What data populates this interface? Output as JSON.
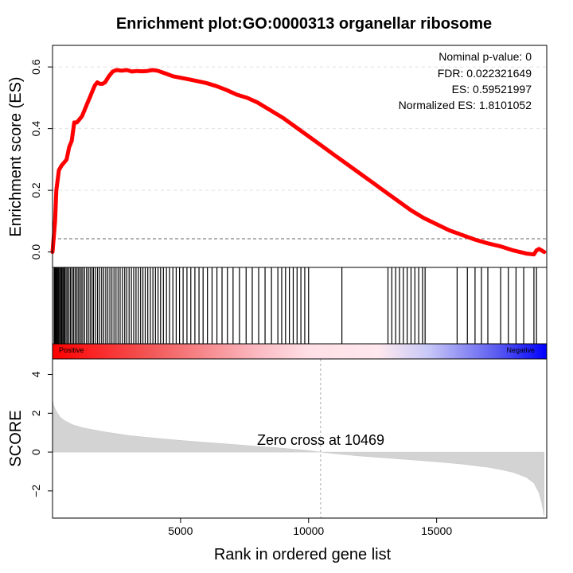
{
  "chart_data": [
    {
      "type": "line",
      "panel": "enrichment-score",
      "title": "Enrichment plot:GO:0000313 organellar ribosome",
      "ylabel": "Enrichment score (ES)",
      "xlim": [
        0,
        19300
      ],
      "ylim": [
        -0.05,
        0.67
      ],
      "yticks": [
        0.0,
        0.2,
        0.4,
        0.6
      ],
      "grid": "dashed horizontal",
      "zero_line": "dashed",
      "line_color": "#ff0000",
      "x": [
        0,
        100,
        150,
        250,
        350,
        450,
        550,
        650,
        750,
        850,
        950,
        1050,
        1150,
        1250,
        1350,
        1450,
        1550,
        1650,
        1750,
        1850,
        1950,
        2050,
        2200,
        2350,
        2500,
        2700,
        2900,
        3100,
        3300,
        3500,
        3700,
        3900,
        4100,
        4300,
        4500,
        4700,
        5000,
        5300,
        5600,
        6000,
        6400,
        6800,
        7200,
        7600,
        8000,
        8500,
        9000,
        9500,
        10000,
        10500,
        11000,
        11500,
        12000,
        12500,
        13000,
        13500,
        14000,
        14500,
        15000,
        15500,
        16000,
        16500,
        17000,
        17500,
        18000,
        18500,
        18800,
        18900,
        19000,
        19100,
        19200
      ],
      "y": [
        0.0,
        0.1,
        0.2,
        0.265,
        0.28,
        0.29,
        0.3,
        0.34,
        0.36,
        0.42,
        0.42,
        0.43,
        0.44,
        0.46,
        0.48,
        0.5,
        0.52,
        0.54,
        0.55,
        0.545,
        0.545,
        0.55,
        0.57,
        0.585,
        0.59,
        0.588,
        0.59,
        0.585,
        0.587,
        0.586,
        0.587,
        0.59,
        0.588,
        0.582,
        0.576,
        0.57,
        0.565,
        0.56,
        0.555,
        0.548,
        0.538,
        0.525,
        0.51,
        0.5,
        0.485,
        0.46,
        0.435,
        0.405,
        0.375,
        0.345,
        0.315,
        0.285,
        0.255,
        0.225,
        0.195,
        0.165,
        0.135,
        0.11,
        0.09,
        0.07,
        0.055,
        0.04,
        0.028,
        0.018,
        0.005,
        -0.005,
        -0.008,
        0.005,
        0.01,
        0.005,
        0.0
      ],
      "annotations": [
        "Nominal p-value: 0",
        "FDR: 0.022321649",
        "ES: 0.59521997",
        "Normalized ES: 1.8101052"
      ]
    },
    {
      "type": "barcode",
      "panel": "gene-hits",
      "labels": [
        "Positive",
        "Negative"
      ],
      "hit_ranks": [
        60,
        90,
        120,
        150,
        180,
        210,
        240,
        280,
        320,
        360,
        400,
        440,
        480,
        530,
        580,
        640,
        700,
        760,
        820,
        880,
        940,
        1000,
        1060,
        1120,
        1180,
        1250,
        1330,
        1400,
        1470,
        1540,
        1600,
        1680,
        1760,
        1840,
        1920,
        2000,
        2080,
        2160,
        2240,
        2320,
        2400,
        2480,
        2560,
        2640,
        2730,
        2820,
        2900,
        2990,
        3080,
        3170,
        3260,
        3350,
        3440,
        3530,
        3620,
        3720,
        3820,
        3920,
        4020,
        4120,
        4220,
        4330,
        4450,
        4570,
        4700,
        4830,
        4960,
        5100,
        5250,
        5400,
        5560,
        5720,
        5880,
        6050,
        6230,
        6420,
        6620,
        6830,
        7050,
        7300,
        7560,
        7800,
        8050,
        8300,
        8550,
        8800,
        8950,
        9100,
        9250,
        9400,
        9550,
        9700,
        9850,
        10000,
        11300,
        13100,
        13250,
        13400,
        13550,
        13700,
        13850,
        14000,
        14150,
        14300,
        14450,
        14550,
        15800,
        16200,
        16500,
        16750,
        17000,
        17500,
        17800,
        18100,
        18400,
        18800,
        18900
      ],
      "color_gradient": [
        "#ff0000",
        "#ffe0e6",
        "#0000ff"
      ]
    },
    {
      "type": "area",
      "panel": "ranked-list-metric",
      "ylabel": "SCORE",
      "xlabel": "Rank in ordered gene list",
      "xlim": [
        0,
        19300
      ],
      "ylim": [
        -3.4,
        4.8
      ],
      "xticks": [
        5000,
        10000,
        15000
      ],
      "yticks": [
        -2,
        0,
        2,
        4
      ],
      "zero_cross": 10469,
      "annotation": "Zero cross at 10469",
      "fill_color": "#d3d3d3",
      "x": [
        0,
        30,
        80,
        150,
        300,
        500,
        800,
        1200,
        2000,
        3000,
        4000,
        5000,
        6000,
        7000,
        8000,
        9000,
        10000,
        10469,
        11000,
        12000,
        13000,
        14000,
        15000,
        16000,
        17000,
        17500,
        18000,
        18500,
        18800,
        19000,
        19100,
        19200
      ],
      "y": [
        2.7,
        2.5,
        2.3,
        2.1,
        1.8,
        1.6,
        1.4,
        1.25,
        1.05,
        0.85,
        0.72,
        0.6,
        0.5,
        0.4,
        0.3,
        0.2,
        0.08,
        0.0,
        -0.08,
        -0.2,
        -0.3,
        -0.4,
        -0.5,
        -0.62,
        -0.78,
        -0.9,
        -1.05,
        -1.3,
        -1.6,
        -2.1,
        -2.6,
        -3.3
      ]
    }
  ]
}
